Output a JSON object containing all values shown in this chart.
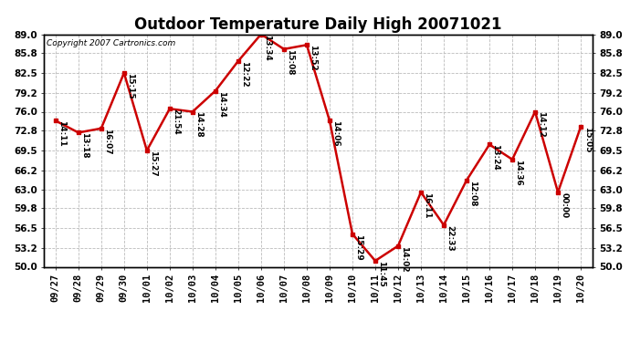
{
  "title": "Outdoor Temperature Daily High 20071021",
  "copyright": "Copyright 2007 Cartronics.com",
  "x_labels": [
    "09/27",
    "09/28",
    "09/29",
    "09/30",
    "10/01",
    "10/02",
    "10/03",
    "10/04",
    "10/05",
    "10/06",
    "10/07",
    "10/08",
    "10/09",
    "10/10",
    "10/11",
    "10/12",
    "10/13",
    "10/14",
    "10/15",
    "10/16",
    "10/17",
    "10/18",
    "10/19",
    "10/20"
  ],
  "y_values": [
    74.5,
    72.5,
    73.2,
    82.5,
    69.5,
    76.5,
    76.0,
    79.5,
    84.5,
    89.0,
    86.5,
    87.2,
    74.5,
    55.5,
    51.0,
    53.5,
    62.5,
    57.0,
    64.5,
    70.5,
    68.0,
    76.0,
    62.5,
    73.5
  ],
  "point_labels": [
    "14:11",
    "13:18",
    "16:07",
    "15:15",
    "15:27",
    "21:54",
    "14:28",
    "14:34",
    "12:22",
    "13:34",
    "15:08",
    "13:52",
    "14:06",
    "15:29",
    "11:45",
    "14:02",
    "16:11",
    "22:33",
    "12:08",
    "13:24",
    "14:36",
    "14:12",
    "00:00",
    "15:05"
  ],
  "line_color": "#cc0000",
  "marker_color": "#cc0000",
  "bg_color": "#ffffff",
  "grid_color": "#bbbbbb",
  "ylim_min": 50.0,
  "ylim_max": 89.0,
  "yticks": [
    50.0,
    53.2,
    56.5,
    59.8,
    63.0,
    66.2,
    69.5,
    72.8,
    76.0,
    79.2,
    82.5,
    85.8,
    89.0
  ],
  "title_fontsize": 12,
  "label_fontsize": 6.5,
  "tick_fontsize": 7.5,
  "copyright_fontsize": 6.5
}
